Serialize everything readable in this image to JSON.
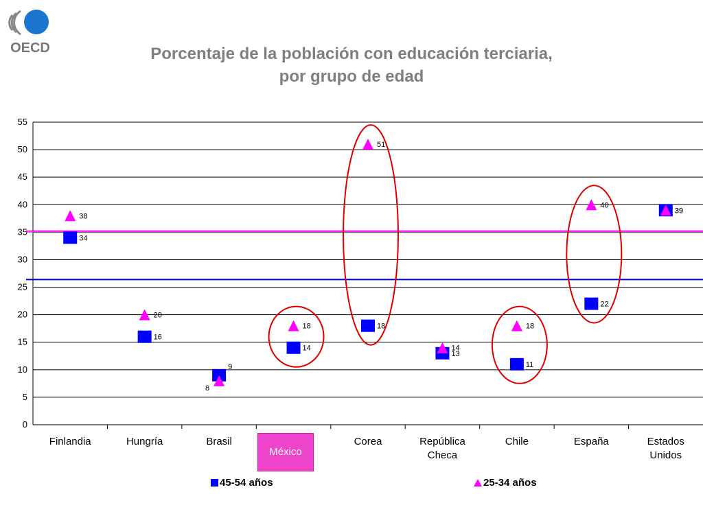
{
  "logo": {
    "text": "OECD",
    "icon": "oecd-logo-icon"
  },
  "title_lines": [
    "Porcentaje de la población con educación terciaria,",
    "por grupo de edad"
  ],
  "highlight_label": "México",
  "colors": {
    "series_45_54": "#0000ff",
    "series_25_34": "#ff00ff",
    "highlight_oval": "#dd0000",
    "ref_line_magenta": "#ff00ff",
    "ref_line_blue": "#0000cc"
  },
  "chart_data": {
    "type": "scatter",
    "categories": [
      "Finlandia",
      "Hungría",
      "Brasil",
      "México",
      "Corea",
      "República Checa",
      "Chile",
      "España",
      "Estados Unidos"
    ],
    "category_lines": [
      [
        "Finlandia"
      ],
      [
        "Hungría"
      ],
      [
        "Brasil"
      ],
      [
        "México"
      ],
      [
        "Corea"
      ],
      [
        "República",
        "Checa"
      ],
      [
        "Chile"
      ],
      [
        "España"
      ],
      [
        "Estados",
        "Unidos"
      ]
    ],
    "series": [
      {
        "name": "45-54 años",
        "marker": "square",
        "values": [
          34,
          16,
          9,
          14,
          18,
          13,
          11,
          22,
          39
        ]
      },
      {
        "name": "25-34 años",
        "marker": "triangle",
        "values": [
          38,
          20,
          8,
          18,
          51,
          14,
          18,
          40,
          39
        ]
      }
    ],
    "ylim": [
      0,
      55
    ],
    "yticks": [
      0,
      5,
      10,
      15,
      20,
      25,
      30,
      35,
      40,
      45,
      50,
      55
    ],
    "grid": true,
    "reference_lines": [
      35.2,
      26.4
    ],
    "highlighted_categories": [
      "México",
      "Corea",
      "Chile",
      "España"
    ],
    "legend_position": "bottom"
  }
}
